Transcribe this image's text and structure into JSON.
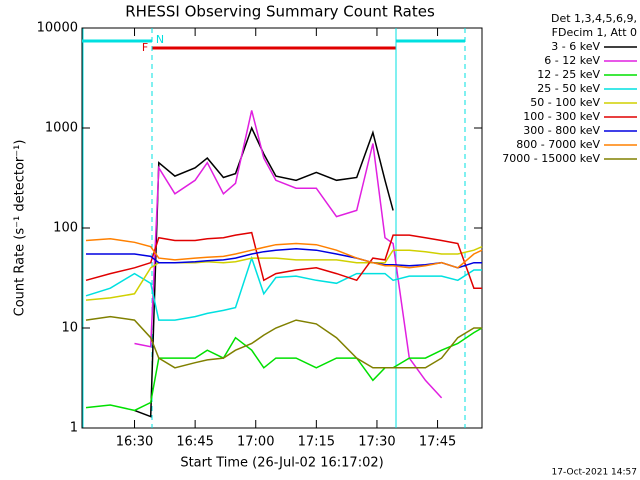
{
  "chart_data": {
    "type": "line",
    "title": "RHESSI Observing Summary Count Rates",
    "xlabel": "Start Time (26-Jul-02 16:17:02)",
    "ylabel": "Count Rate (s⁻¹ detector⁻¹)",
    "legend_header": [
      "Det 1,3,4,5,6,9,",
      "FDecim 1, Att 0"
    ],
    "annotations": [
      "N",
      "F"
    ],
    "footer": "17-Oct-2021 14:57",
    "log_y": true,
    "grid": false,
    "legend": "outside right",
    "xlim": [
      977,
      1076
    ],
    "xticks": [
      {
        "value": 990,
        "label": "16:30"
      },
      {
        "value": 1005,
        "label": "16:45"
      },
      {
        "value": 1020,
        "label": "17:00"
      },
      {
        "value": 1035,
        "label": "17:15"
      },
      {
        "value": 1050,
        "label": "17:30"
      },
      {
        "value": 1065,
        "label": "17:45"
      }
    ],
    "ylim": [
      1,
      10000
    ],
    "yticks": [
      1,
      10,
      100,
      1000,
      10000
    ],
    "x": [
      978,
      984,
      990,
      994,
      996,
      1000,
      1005,
      1008,
      1012,
      1015,
      1019,
      1022,
      1025,
      1030,
      1035,
      1040,
      1045,
      1049,
      1052,
      1054,
      1058,
      1062,
      1066,
      1070,
      1074,
      1076
    ],
    "series": [
      {
        "name": "3 - 6 keV",
        "color": "#000000",
        "values": [
          null,
          null,
          1.5,
          1.3,
          450,
          330,
          400,
          500,
          320,
          350,
          1000,
          550,
          330,
          300,
          360,
          300,
          320,
          900,
          300,
          150,
          null,
          null,
          null,
          null,
          null,
          null
        ]
      },
      {
        "name": "6 - 12 keV",
        "color": "#e020e0",
        "values": [
          null,
          null,
          7,
          6.5,
          400,
          220,
          300,
          450,
          220,
          280,
          1500,
          500,
          300,
          250,
          250,
          130,
          150,
          700,
          80,
          70,
          5,
          3,
          2,
          null,
          null,
          null
        ]
      },
      {
        "name": "12 - 25 keV",
        "color": "#00e000",
        "values": [
          1.6,
          1.7,
          1.5,
          1.8,
          5,
          5,
          5,
          6,
          5,
          8,
          6,
          4,
          5,
          5,
          4,
          5,
          5,
          3,
          4,
          4,
          5,
          5,
          6,
          7,
          9,
          10
        ]
      },
      {
        "name": "25 - 50 keV",
        "color": "#00e0e0",
        "values": [
          21,
          25,
          35,
          28,
          12,
          12,
          13,
          14,
          15,
          16,
          50,
          22,
          32,
          33,
          30,
          28,
          35,
          35,
          35,
          30,
          33,
          33,
          33,
          30,
          38,
          38
        ]
      },
      {
        "name": "50 - 100 keV",
        "color": "#d0d000",
        "values": [
          19,
          20,
          22,
          40,
          45,
          45,
          45,
          46,
          45,
          46,
          50,
          50,
          50,
          48,
          48,
          48,
          45,
          45,
          45,
          60,
          60,
          58,
          55,
          55,
          60,
          65
        ]
      },
      {
        "name": "100 - 300 keV",
        "color": "#e00000",
        "values": [
          30,
          35,
          40,
          45,
          80,
          75,
          75,
          78,
          80,
          85,
          90,
          30,
          35,
          38,
          40,
          35,
          30,
          50,
          48,
          85,
          85,
          80,
          75,
          70,
          25,
          25
        ]
      },
      {
        "name": "300 - 800 keV",
        "color": "#0000e0",
        "values": [
          55,
          55,
          55,
          52,
          45,
          45,
          46,
          47,
          48,
          50,
          55,
          58,
          60,
          62,
          60,
          55,
          50,
          45,
          43,
          43,
          42,
          43,
          45,
          40,
          45,
          45
        ]
      },
      {
        "name": "800 - 7000 keV",
        "color": "#ff8000",
        "values": [
          75,
          78,
          72,
          65,
          50,
          48,
          50,
          51,
          52,
          55,
          60,
          64,
          68,
          70,
          68,
          60,
          50,
          45,
          42,
          42,
          40,
          42,
          45,
          40,
          55,
          60
        ]
      },
      {
        "name": "7000 - 15000 keV",
        "color": "#808000",
        "values": [
          12,
          13,
          12,
          8,
          5,
          4,
          4.5,
          4.8,
          5,
          6,
          7,
          8.5,
          10,
          12,
          11,
          8,
          5,
          4,
          4,
          4,
          4,
          4,
          5,
          8,
          10,
          10
        ]
      }
    ]
  }
}
